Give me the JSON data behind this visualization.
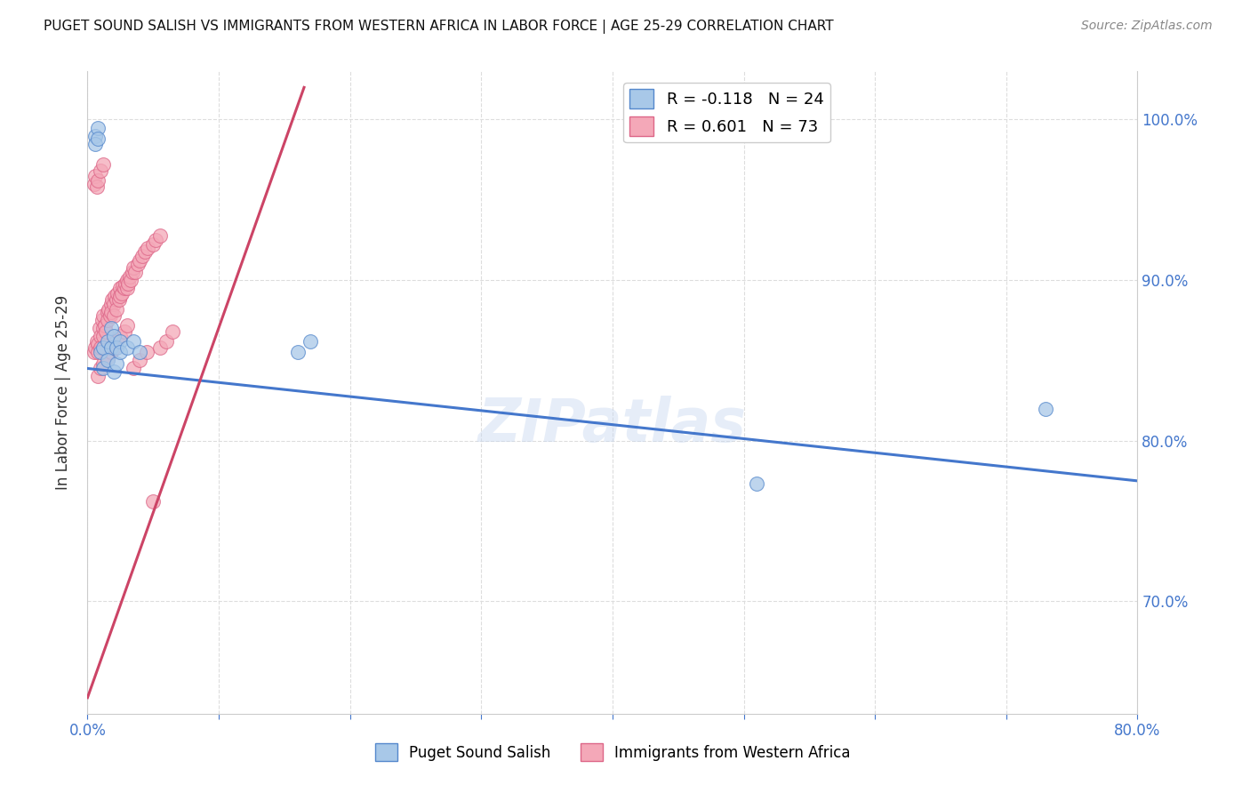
{
  "title": "PUGET SOUND SALISH VS IMMIGRANTS FROM WESTERN AFRICA IN LABOR FORCE | AGE 25-29 CORRELATION CHART",
  "source": "Source: ZipAtlas.com",
  "ylabel": "In Labor Force | Age 25-29",
  "xlim": [
    0.0,
    0.8
  ],
  "ylim": [
    0.63,
    1.03
  ],
  "yticks": [
    0.7,
    0.8,
    0.9,
    1.0
  ],
  "xticks": [
    0.0,
    0.1,
    0.2,
    0.3,
    0.4,
    0.5,
    0.6,
    0.7,
    0.8
  ],
  "blue_color": "#a8c8e8",
  "pink_color": "#f4a8b8",
  "blue_edge_color": "#5588cc",
  "pink_edge_color": "#dd6688",
  "blue_line_color": "#4477cc",
  "pink_line_color": "#cc4466",
  "legend_blue_r": "R = -0.118",
  "legend_blue_n": "N = 24",
  "legend_pink_r": "R = 0.601",
  "legend_pink_n": "N = 73",
  "watermark": "ZIPatlas",
  "axis_color": "#4477cc",
  "grid_color": "#dddddd",
  "blue_scatter_x": [
    0.006,
    0.008,
    0.006,
    0.008,
    0.01,
    0.012,
    0.015,
    0.018,
    0.012,
    0.015,
    0.018,
    0.02,
    0.022,
    0.025,
    0.02,
    0.022,
    0.025,
    0.03,
    0.035,
    0.04,
    0.16,
    0.17,
    0.51,
    0.73
  ],
  "blue_scatter_y": [
    0.99,
    0.995,
    0.985,
    0.988,
    0.855,
    0.858,
    0.862,
    0.858,
    0.845,
    0.85,
    0.87,
    0.865,
    0.858,
    0.862,
    0.843,
    0.848,
    0.855,
    0.858,
    0.862,
    0.855,
    0.855,
    0.862,
    0.773,
    0.82
  ],
  "pink_scatter_x": [
    0.005,
    0.006,
    0.007,
    0.008,
    0.008,
    0.009,
    0.01,
    0.01,
    0.011,
    0.012,
    0.012,
    0.012,
    0.013,
    0.014,
    0.015,
    0.015,
    0.016,
    0.017,
    0.018,
    0.018,
    0.019,
    0.02,
    0.02,
    0.021,
    0.022,
    0.022,
    0.023,
    0.024,
    0.025,
    0.025,
    0.026,
    0.027,
    0.028,
    0.029,
    0.03,
    0.03,
    0.031,
    0.032,
    0.033,
    0.034,
    0.035,
    0.036,
    0.038,
    0.04,
    0.042,
    0.044,
    0.046,
    0.05,
    0.052,
    0.055,
    0.008,
    0.01,
    0.012,
    0.015,
    0.018,
    0.02,
    0.022,
    0.025,
    0.028,
    0.03,
    0.005,
    0.006,
    0.007,
    0.008,
    0.01,
    0.012,
    0.035,
    0.04,
    0.045,
    0.05,
    0.055,
    0.06,
    0.065
  ],
  "pink_scatter_y": [
    0.855,
    0.858,
    0.862,
    0.86,
    0.855,
    0.87,
    0.865,
    0.858,
    0.875,
    0.87,
    0.878,
    0.865,
    0.872,
    0.868,
    0.88,
    0.875,
    0.882,
    0.878,
    0.885,
    0.88,
    0.888,
    0.885,
    0.878,
    0.89,
    0.888,
    0.882,
    0.892,
    0.888,
    0.895,
    0.89,
    0.892,
    0.896,
    0.895,
    0.898,
    0.9,
    0.895,
    0.898,
    0.902,
    0.9,
    0.905,
    0.908,
    0.905,
    0.91,
    0.912,
    0.915,
    0.918,
    0.92,
    0.922,
    0.925,
    0.928,
    0.84,
    0.845,
    0.848,
    0.852,
    0.855,
    0.858,
    0.862,
    0.865,
    0.868,
    0.872,
    0.96,
    0.965,
    0.958,
    0.962,
    0.968,
    0.972,
    0.845,
    0.85,
    0.855,
    0.762,
    0.858,
    0.862,
    0.868
  ],
  "blue_trend_x": [
    0.0,
    0.8
  ],
  "blue_trend_y": [
    0.845,
    0.775
  ],
  "pink_trend_x": [
    0.0,
    0.165
  ],
  "pink_trend_y": [
    0.64,
    1.02
  ]
}
